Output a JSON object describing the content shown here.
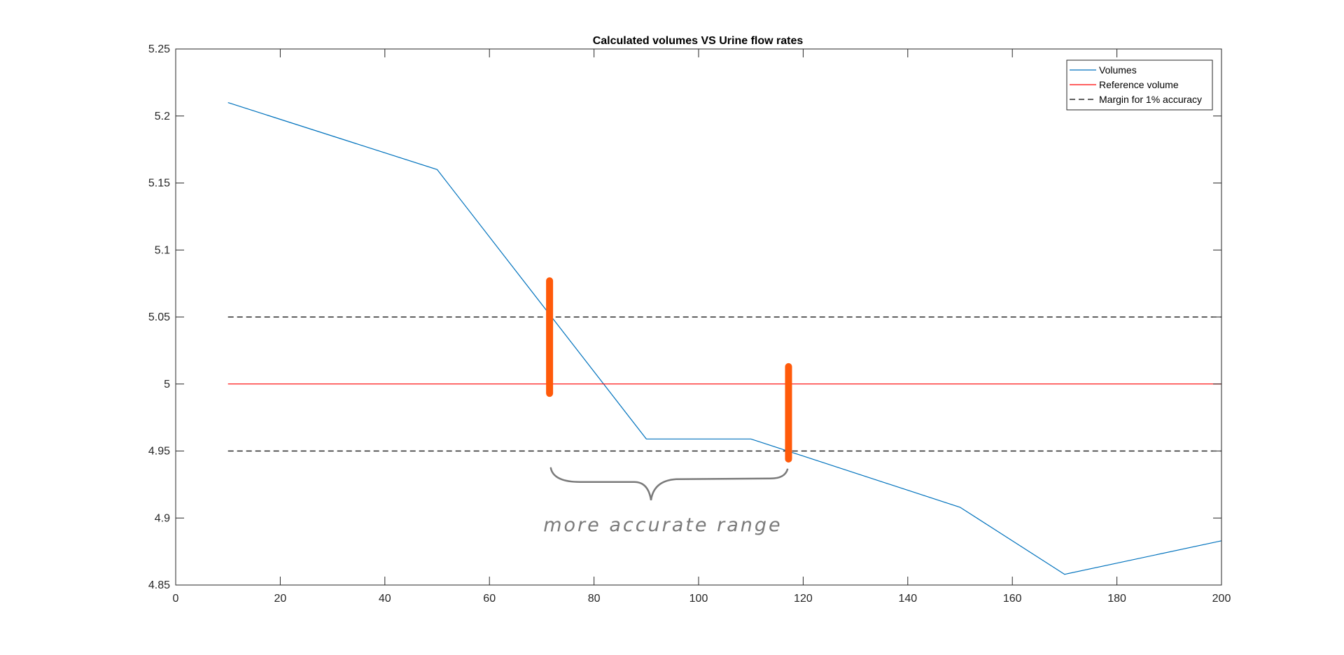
{
  "chart_data": {
    "type": "line",
    "title": "Calculated volumes VS Urine flow rates",
    "xlabel": "",
    "ylabel": "",
    "xlim": [
      0,
      200
    ],
    "ylim": [
      4.85,
      5.25
    ],
    "x_ticks": [
      "0",
      "20",
      "40",
      "60",
      "80",
      "100",
      "120",
      "140",
      "160",
      "180",
      "200"
    ],
    "y_ticks": [
      "4.85",
      "4.9",
      "4.95",
      "5",
      "5.05",
      "5.1",
      "5.15",
      "5.2",
      "5.25"
    ],
    "grid": false,
    "legend_position": "top-right",
    "series": [
      {
        "name": "Volumes",
        "color": "#0072bd",
        "style": "solid",
        "x": [
          10,
          50,
          90,
          110,
          150,
          170,
          200
        ],
        "y": [
          5.21,
          5.16,
          4.959,
          4.959,
          4.908,
          4.858,
          4.883
        ]
      },
      {
        "name": "Reference volume",
        "color": "#ff0000",
        "style": "solid",
        "x": [
          10,
          200
        ],
        "y": [
          5.0,
          5.0
        ]
      },
      {
        "name": "Margin for 1% accuracy",
        "color": "#000000",
        "style": "dashed",
        "x": [
          10,
          200
        ],
        "y": [
          5.05,
          5.05
        ]
      },
      {
        "name": "",
        "color": "#000000",
        "style": "dashed",
        "x": [
          10,
          200
        ],
        "y": [
          4.95,
          4.95
        ]
      }
    ],
    "annotations": {
      "text": "more accurate range",
      "color": "#7a7a7a",
      "marker_color": "#ff5a0a",
      "markers": [
        {
          "x": 71.5,
          "y_from": 5.077,
          "y_to": 4.993
        },
        {
          "x": 117.2,
          "y_from": 5.013,
          "y_to": 4.944
        }
      ],
      "range": {
        "x_from": 72,
        "x_to": 117,
        "y": 4.93
      }
    }
  }
}
